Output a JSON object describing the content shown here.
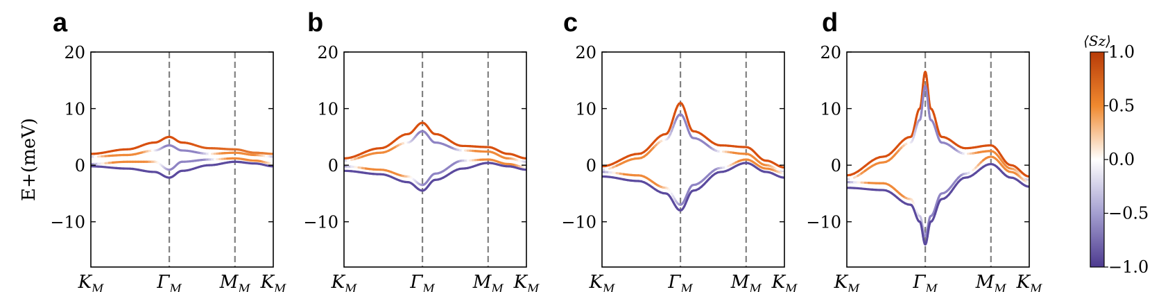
{
  "panels": [
    "a",
    "b",
    "c",
    "d"
  ],
  "ylabel": "E+(meV)",
  "colorbar": {
    "title": "⟨Sz⟩",
    "ticks": [
      "1.0",
      "0.5",
      "0.0",
      "−0.5",
      "−1.0"
    ],
    "tick_values": [
      1.0,
      0.5,
      0.0,
      -0.5,
      -1.0
    ],
    "colors": {
      "negative": "#5b4a9e",
      "neutral": "#ffffff",
      "positive": "#d8500f"
    }
  },
  "chart_data": [
    {
      "type": "line",
      "panel": "a",
      "xticks": [
        "K",
        "Γ",
        "M",
        "K"
      ],
      "xtick_subscript": "M",
      "xtick_positions": [
        0,
        0.43,
        0.79,
        1.0
      ],
      "vlines": [
        0.43,
        0.79
      ],
      "ylim": [
        -18,
        20
      ],
      "yticks": [
        "20",
        "10",
        "0",
        "−10"
      ],
      "ytick_values": [
        20,
        10,
        0,
        -10
      ],
      "series": [
        {
          "color": "positive-to-negative",
          "points": [
            [
              0,
              2.0
            ],
            [
              0.2,
              2.8
            ],
            [
              0.35,
              4.0
            ],
            [
              0.43,
              5.0
            ],
            [
              0.5,
              4.0
            ],
            [
              0.65,
              3.0
            ],
            [
              0.79,
              2.8
            ],
            [
              0.9,
              2.2
            ],
            [
              1.0,
              2.0
            ]
          ]
        },
        {
          "color": "mixed",
          "points": [
            [
              0,
              1.5
            ],
            [
              0.2,
              1.8
            ],
            [
              0.35,
              2.6
            ],
            [
              0.43,
              3.5
            ],
            [
              0.5,
              2.6
            ],
            [
              0.65,
              2.0
            ],
            [
              0.79,
              2.2
            ],
            [
              0.9,
              1.8
            ],
            [
              1.0,
              1.5
            ]
          ]
        },
        {
          "color": "mixed",
          "points": [
            [
              0,
              0.2
            ],
            [
              0.2,
              0.6
            ],
            [
              0.35,
              0.6
            ],
            [
              0.43,
              -0.8
            ],
            [
              0.5,
              0.6
            ],
            [
              0.65,
              1.0
            ],
            [
              0.79,
              1.2
            ],
            [
              0.9,
              0.8
            ],
            [
              1.0,
              0.3
            ]
          ]
        },
        {
          "color": "negative",
          "points": [
            [
              0,
              -0.2
            ],
            [
              0.2,
              -0.6
            ],
            [
              0.35,
              -1.2
            ],
            [
              0.43,
              -2.2
            ],
            [
              0.5,
              -1.0
            ],
            [
              0.65,
              0.0
            ],
            [
              0.79,
              0.6
            ],
            [
              0.9,
              0.3
            ],
            [
              1.0,
              -0.2
            ]
          ]
        }
      ]
    },
    {
      "type": "line",
      "panel": "b",
      "xticks": [
        "K",
        "Γ",
        "M",
        "K"
      ],
      "xtick_subscript": "M",
      "xtick_positions": [
        0,
        0.43,
        0.79,
        1.0
      ],
      "vlines": [
        0.43,
        0.79
      ],
      "ylim": [
        -18,
        20
      ],
      "yticks": [
        "20",
        "10",
        "0",
        "−10"
      ],
      "ytick_values": [
        20,
        10,
        0,
        -10
      ],
      "series": [
        {
          "color": "positive",
          "points": [
            [
              0,
              1.2
            ],
            [
              0.2,
              3.0
            ],
            [
              0.35,
              5.5
            ],
            [
              0.43,
              7.5
            ],
            [
              0.5,
              5.5
            ],
            [
              0.65,
              3.4
            ],
            [
              0.79,
              3.2
            ],
            [
              0.9,
              2.0
            ],
            [
              1.0,
              1.2
            ]
          ]
        },
        {
          "color": "mixed",
          "points": [
            [
              0,
              0.8
            ],
            [
              0.2,
              2.2
            ],
            [
              0.35,
              4.0
            ],
            [
              0.43,
              6.0
            ],
            [
              0.5,
              4.0
            ],
            [
              0.65,
              2.6
            ],
            [
              0.79,
              2.4
            ],
            [
              0.9,
              1.2
            ],
            [
              1.0,
              0.6
            ]
          ]
        },
        {
          "color": "mixed",
          "points": [
            [
              0,
              -0.2
            ],
            [
              0.2,
              -0.8
            ],
            [
              0.35,
              -2.0
            ],
            [
              0.43,
              -3.5
            ],
            [
              0.5,
              -1.5
            ],
            [
              0.65,
              0.8
            ],
            [
              0.79,
              1.0
            ],
            [
              0.9,
              0.2
            ],
            [
              1.0,
              -0.4
            ]
          ]
        },
        {
          "color": "negative",
          "points": [
            [
              0,
              -1.0
            ],
            [
              0.2,
              -1.6
            ],
            [
              0.35,
              -3.0
            ],
            [
              0.43,
              -4.5
            ],
            [
              0.5,
              -2.6
            ],
            [
              0.65,
              -0.6
            ],
            [
              0.79,
              0.4
            ],
            [
              0.9,
              -0.2
            ],
            [
              1.0,
              -0.8
            ]
          ]
        }
      ]
    },
    {
      "type": "line",
      "panel": "c",
      "xticks": [
        "K",
        "Γ",
        "M",
        "K"
      ],
      "xtick_subscript": "M",
      "xtick_positions": [
        0,
        0.43,
        0.79,
        1.0
      ],
      "vlines": [
        0.43,
        0.79
      ],
      "ylim": [
        -18,
        20
      ],
      "yticks": [
        "20",
        "10",
        "0",
        "−10"
      ],
      "ytick_values": [
        20,
        10,
        0,
        -10
      ],
      "series": [
        {
          "color": "positive",
          "points": [
            [
              0,
              -0.2
            ],
            [
              0.2,
              2.0
            ],
            [
              0.35,
              5.5
            ],
            [
              0.43,
              11.0
            ],
            [
              0.5,
              6.0
            ],
            [
              0.65,
              3.5
            ],
            [
              0.79,
              3.2
            ],
            [
              0.9,
              0.8
            ],
            [
              1.0,
              -0.4
            ]
          ]
        },
        {
          "color": "mixed",
          "points": [
            [
              0,
              -0.8
            ],
            [
              0.2,
              1.2
            ],
            [
              0.35,
              4.5
            ],
            [
              0.43,
              9.0
            ],
            [
              0.5,
              4.8
            ],
            [
              0.65,
              2.4
            ],
            [
              0.79,
              2.0
            ],
            [
              0.9,
              0.0
            ],
            [
              1.0,
              -1.2
            ]
          ]
        },
        {
          "color": "mixed",
          "points": [
            [
              0,
              -1.2
            ],
            [
              0.2,
              -1.8
            ],
            [
              0.35,
              -4.0
            ],
            [
              0.43,
              -7.0
            ],
            [
              0.5,
              -3.5
            ],
            [
              0.65,
              -0.5
            ],
            [
              0.79,
              1.0
            ],
            [
              0.9,
              -0.6
            ],
            [
              1.0,
              -1.4
            ]
          ]
        },
        {
          "color": "negative",
          "points": [
            [
              0,
              -2.0
            ],
            [
              0.2,
              -2.8
            ],
            [
              0.35,
              -5.0
            ],
            [
              0.43,
              -8.0
            ],
            [
              0.5,
              -4.5
            ],
            [
              0.65,
              -1.2
            ],
            [
              0.79,
              0.4
            ],
            [
              0.9,
              -1.2
            ],
            [
              1.0,
              -2.2
            ]
          ]
        }
      ]
    },
    {
      "type": "line",
      "panel": "d",
      "xticks": [
        "K",
        "Γ",
        "M",
        "K"
      ],
      "xtick_subscript": "M",
      "xtick_positions": [
        0,
        0.43,
        0.79,
        1.0
      ],
      "vlines": [
        0.43,
        0.79
      ],
      "ylim": [
        -18,
        20
      ],
      "yticks": [
        "20",
        "10",
        "0",
        "−10"
      ],
      "ytick_values": [
        20,
        10,
        0,
        -10
      ],
      "series": [
        {
          "color": "positive",
          "points": [
            [
              0,
              -1.8
            ],
            [
              0.2,
              1.5
            ],
            [
              0.35,
              5.0
            ],
            [
              0.4,
              10.0
            ],
            [
              0.43,
              16.5
            ],
            [
              0.46,
              10.0
            ],
            [
              0.52,
              5.0
            ],
            [
              0.65,
              3.0
            ],
            [
              0.79,
              3.5
            ],
            [
              0.9,
              0.0
            ],
            [
              1.0,
              -2.0
            ]
          ]
        },
        {
          "color": "mixed",
          "points": [
            [
              0,
              -2.5
            ],
            [
              0.2,
              0.5
            ],
            [
              0.35,
              4.0
            ],
            [
              0.4,
              8.0
            ],
            [
              0.43,
              14.0
            ],
            [
              0.46,
              8.0
            ],
            [
              0.52,
              4.0
            ],
            [
              0.65,
              2.0
            ],
            [
              0.79,
              2.5
            ],
            [
              0.9,
              -0.6
            ],
            [
              1.0,
              -2.6
            ]
          ]
        },
        {
          "color": "mixed",
          "points": [
            [
              0,
              -3.0
            ],
            [
              0.2,
              -3.2
            ],
            [
              0.35,
              -6.0
            ],
            [
              0.4,
              -9.0
            ],
            [
              0.43,
              -12.5
            ],
            [
              0.46,
              -9.0
            ],
            [
              0.52,
              -5.0
            ],
            [
              0.65,
              -1.5
            ],
            [
              0.79,
              1.5
            ],
            [
              0.9,
              -1.2
            ],
            [
              1.0,
              -3.0
            ]
          ]
        },
        {
          "color": "negative",
          "points": [
            [
              0,
              -4.0
            ],
            [
              0.2,
              -4.4
            ],
            [
              0.35,
              -7.0
            ],
            [
              0.4,
              -10.0
            ],
            [
              0.43,
              -14.0
            ],
            [
              0.46,
              -10.0
            ],
            [
              0.52,
              -6.0
            ],
            [
              0.65,
              -2.2
            ],
            [
              0.79,
              0.2
            ],
            [
              0.9,
              -2.2
            ],
            [
              1.0,
              -3.8
            ]
          ]
        }
      ]
    }
  ]
}
